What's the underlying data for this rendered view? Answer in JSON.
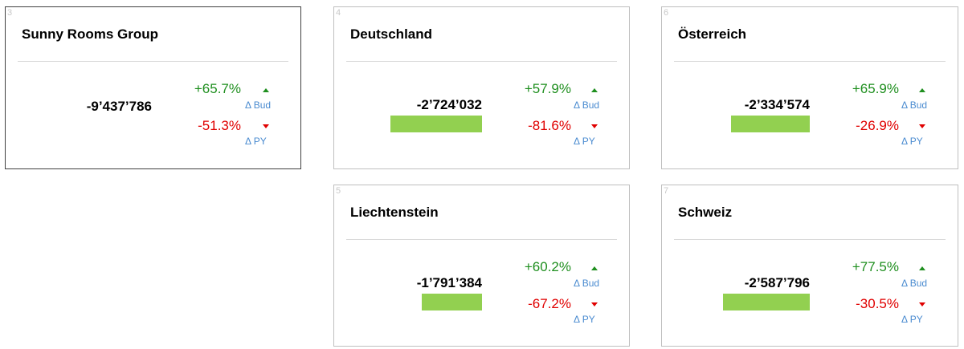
{
  "colors": {
    "positive": "#1f8f1f",
    "negative": "#e00000",
    "label": "#4a8bd0",
    "bar": "#92d050"
  },
  "cards": [
    {
      "num": "3",
      "title": "Sunny Rooms Group",
      "value": "-9’437’786",
      "bud_pct": "+65.7%",
      "bud_label": "Δ Bud",
      "py_pct": "-51.3%",
      "py_label": "Δ PY",
      "bar_fraction": 0
    },
    {
      "num": "4",
      "title": "Deutschland",
      "value": "-2’724’032",
      "bud_pct": "+57.9%",
      "bud_label": "Δ Bud",
      "py_pct": "-81.6%",
      "py_label": "Δ PY",
      "bar_fraction": 1.0
    },
    {
      "num": "6",
      "title": "Österreich",
      "value": "-2’334’574",
      "bud_pct": "+65.9%",
      "bud_label": "Δ Bud",
      "py_pct": "-26.9%",
      "py_label": "Δ PY",
      "bar_fraction": 0.857
    },
    {
      "num": "5",
      "title": "Liechtenstein",
      "value": "-1’791’384",
      "bud_pct": "+60.2%",
      "bud_label": "Δ Bud",
      "py_pct": "-67.2%",
      "py_label": "Δ PY",
      "bar_fraction": 0.658
    },
    {
      "num": "7",
      "title": "Schweiz",
      "value": "-2’587’796",
      "bud_pct": "+77.5%",
      "bud_label": "Δ Bud",
      "py_pct": "-30.5%",
      "py_label": "Δ PY",
      "bar_fraction": 0.95
    }
  ]
}
